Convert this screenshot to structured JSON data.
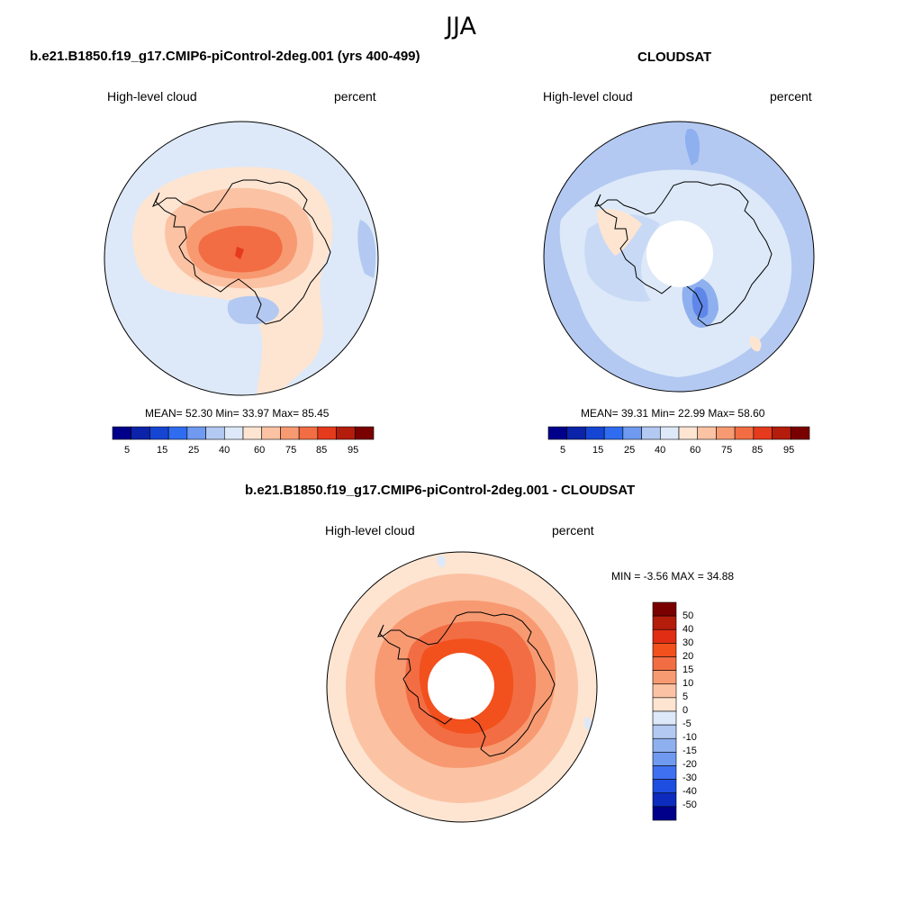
{
  "season": "JJA",
  "colors": {
    "cb_12": [
      "#00008b",
      "#0a23a8",
      "#1645d4",
      "#2f6cf0",
      "#6f9af0",
      "#b3c9f2",
      "#dde9f8",
      "#fde5d2",
      "#fbc3a4",
      "#f79a72",
      "#f26d43",
      "#e53a1c",
      "#b41c0c",
      "#7a0000"
    ],
    "cb_diff": [
      "#7a0000",
      "#b41c0c",
      "#e02d14",
      "#f2501d",
      "#f26d43",
      "#f79a72",
      "#fbc3a4",
      "#fde5d2",
      "#dde9f8",
      "#b3c9f2",
      "#8fb0ef",
      "#6f9af0",
      "#3f70f0",
      "#1e4ee0",
      "#0d2cbe",
      "#00008b"
    ]
  },
  "panels": {
    "model": {
      "title": "b.e21.B1850.f19_g17.CMIP6-piControl-2deg.001 (yrs 400-499)",
      "variable": "High-level cloud",
      "units": "percent",
      "stats": "MEAN=  52.30  Min=  33.97  Max=  85.45",
      "colorbar_labels": [
        "5",
        "15",
        "25",
        "40",
        "60",
        "75",
        "85",
        "95"
      ]
    },
    "obs": {
      "title": "CLOUDSAT",
      "variable": "High-level cloud",
      "units": "percent",
      "stats": "MEAN=  39.31  Min=  22.99  Max=  58.60",
      "colorbar_labels": [
        "5",
        "15",
        "25",
        "40",
        "60",
        "75",
        "85",
        "95"
      ]
    },
    "diff": {
      "title": "b.e21.B1850.f19_g17.CMIP6-piControl-2deg.001 - CLOUDSAT",
      "variable": "High-level cloud",
      "units": "percent",
      "stats": "MIN =  -3.56 MAX =  34.88",
      "colorbar_labels": [
        "50",
        "40",
        "30",
        "20",
        "15",
        "10",
        "5",
        "0",
        "-5",
        "-10",
        "-15",
        "-20",
        "-30",
        "-40",
        "-50"
      ]
    }
  }
}
